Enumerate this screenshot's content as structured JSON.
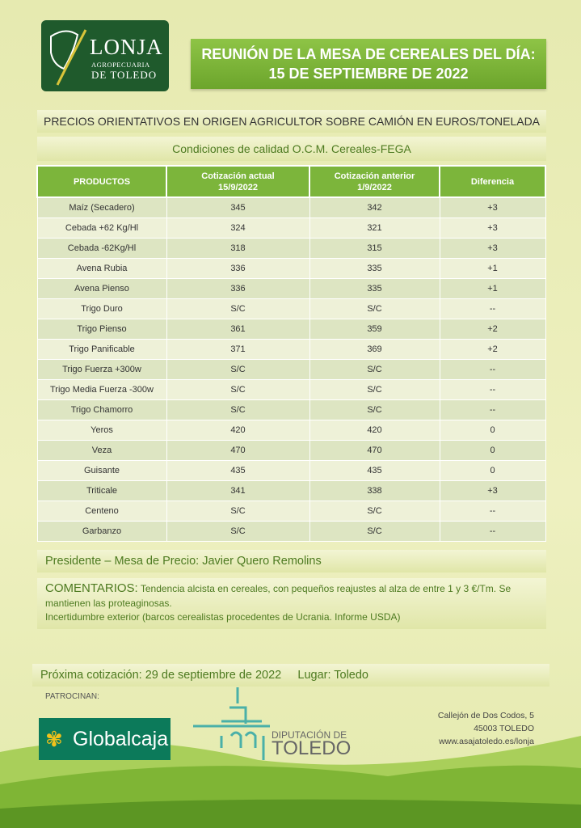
{
  "logo": {
    "title": "LONJA",
    "line1": "AGROPECUARIA",
    "line2": "DE TOLEDO"
  },
  "header": {
    "line1": "REUNIÓN DE LA MESA DE CEREALES DEL DÍA:",
    "line2": "15 DE SEPTIEMBRE DE 2022"
  },
  "subtitle": "PRECIOS ORIENTATIVOS EN ORIGEN AGRICULTOR SOBRE CAMIÓN EN EUROS/TONELADA",
  "conditions": "Condiciones de calidad O.C.M. Cereales-FEGA",
  "table": {
    "headers": [
      [
        "PRODUCTOS",
        ""
      ],
      [
        "Cotización actual",
        "15/9/2022"
      ],
      [
        "Cotización anterior",
        "1/9/2022"
      ],
      [
        "Diferencia",
        ""
      ]
    ],
    "rows": [
      [
        "Maíz (Secadero)",
        "345",
        "342",
        "+3"
      ],
      [
        "Cebada +62 Kg/Hl",
        "324",
        "321",
        "+3"
      ],
      [
        "Cebada -62Kg/Hl",
        "318",
        "315",
        "+3"
      ],
      [
        "Avena Rubia",
        "336",
        "335",
        "+1"
      ],
      [
        "Avena Pienso",
        "336",
        "335",
        "+1"
      ],
      [
        "Trigo Duro",
        "S/C",
        "S/C",
        "--"
      ],
      [
        "Trigo Pienso",
        "361",
        "359",
        "+2"
      ],
      [
        "Trigo Panificable",
        "371",
        "369",
        "+2"
      ],
      [
        "Trigo Fuerza +300w",
        "S/C",
        "S/C",
        "--"
      ],
      [
        "Trigo Media Fuerza -300w",
        "S/C",
        "S/C",
        "--"
      ],
      [
        "Trigo Chamorro",
        "S/C",
        "S/C",
        "--"
      ],
      [
        "Yeros",
        "420",
        "420",
        "0"
      ],
      [
        "Veza",
        "470",
        "470",
        "0"
      ],
      [
        "Guisante",
        "435",
        "435",
        "0"
      ],
      [
        "Triticale",
        "341",
        "338",
        "+3"
      ],
      [
        "Centeno",
        "S/C",
        "S/C",
        "--"
      ],
      [
        "Garbanzo",
        "S/C",
        "S/C",
        "--"
      ]
    ]
  },
  "president": "Presidente – Mesa de Precio: Javier Quero Remolins",
  "comments": {
    "label": "COMENTARIOS:",
    "text": " Tendencia alcista en cereales, con pequeños reajustes al alza de entre 1 y 3 €/Tm. Se mantienen las proteaginosas.",
    "text2": "Incertidumbre exterior (barcos cerealistas procedentes de Ucrania. Informe USDA)"
  },
  "next": {
    "date": "Próxima cotización: 29 de septiembre de 2022",
    "place": "Lugar: Toledo"
  },
  "sponsors": {
    "label": "PATROCINAN:",
    "globalcaja": "Globalcaja",
    "dip1": "DIPUTACIÓN DE",
    "dip2": "TOLEDO"
  },
  "address": [
    "Callejón de Dos Codos, 5",
    "45003 TOLEDO",
    "www.asajatoledo.es/lonja"
  ],
  "colors": {
    "accent": "#7cb53b",
    "dark_green": "#1f5a2c",
    "text_green": "#4d7a20"
  }
}
